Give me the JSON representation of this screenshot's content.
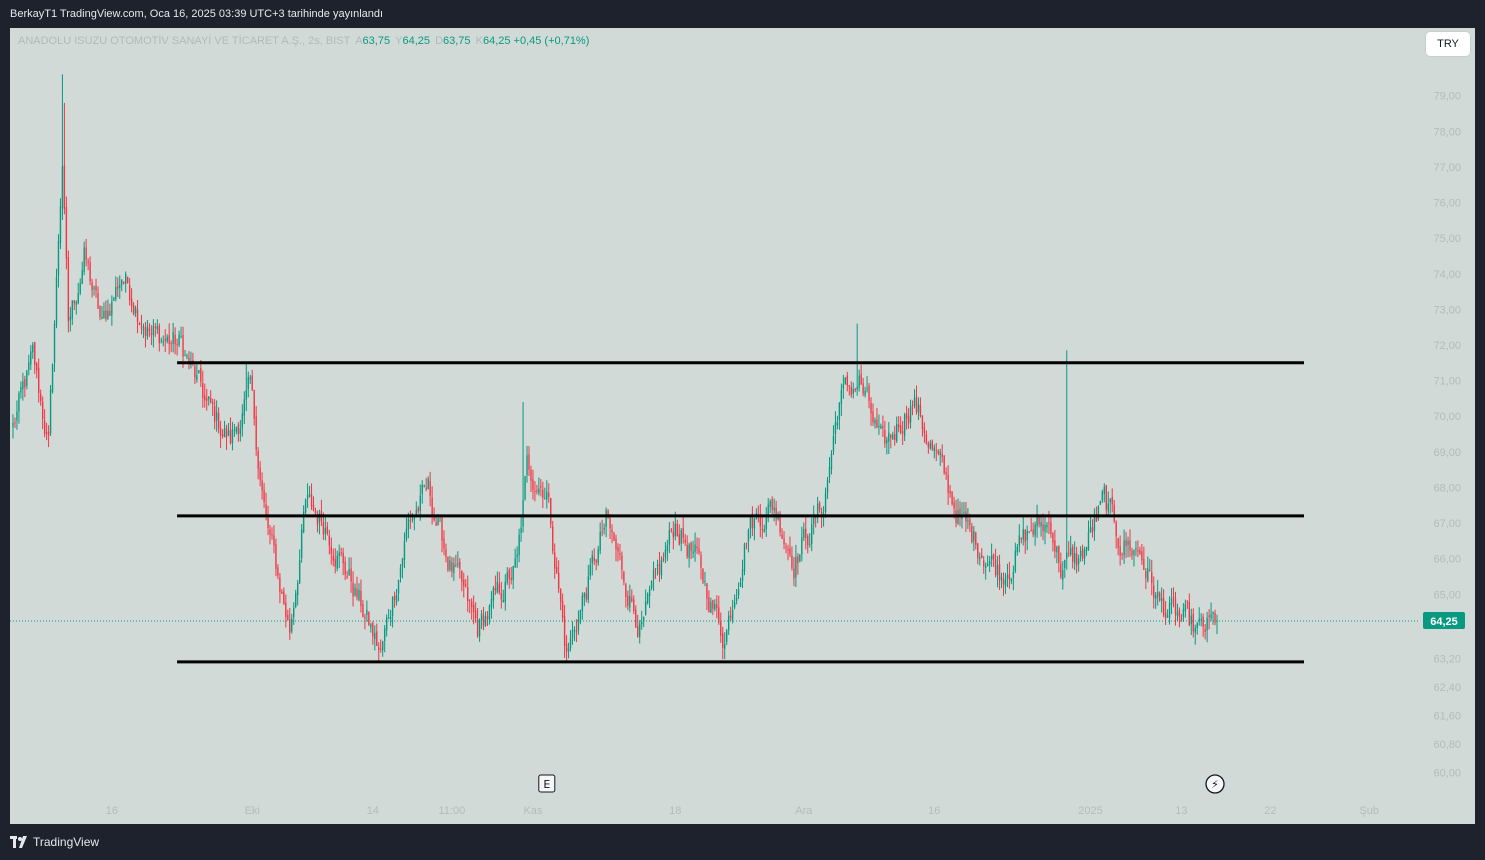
{
  "header": {
    "publish_text": "BerkayT1 TradingView.com, Oca 16, 2025 03:39 UTC+3 tarihinde yayınlandı"
  },
  "legend": {
    "symbol": "ANADOLU ISUZU OTOMOTİV SANAYİ VE TİCARET A.Ş., 2s, BIST",
    "open_key": "A",
    "open": "63,75",
    "high_key": "Y",
    "high": "64,25",
    "low_key": "D",
    "low": "63,75",
    "close_key": "K",
    "close": "64,25",
    "change": "+0,45 (+0,71%)"
  },
  "currency_button": "TRY",
  "brand": {
    "name": "TradingView",
    "logo_icon": "tradingview-logo-icon"
  },
  "colors": {
    "up": "#089981",
    "down": "#f23645",
    "price_tag": "#089981",
    "chart_bg": "#d1dad7",
    "frame_bg": "#1e222d",
    "level_line": "#000000"
  },
  "chart_data": {
    "type": "candlestick",
    "interval": "2s",
    "currency": "TRY",
    "ylim": [
      59.7,
      80.2
    ],
    "y_ticks": [
      {
        "v": 79.0,
        "label": "79,00"
      },
      {
        "v": 78.0,
        "label": "78,00"
      },
      {
        "v": 77.0,
        "label": "77,00"
      },
      {
        "v": 76.0,
        "label": "76,00"
      },
      {
        "v": 75.0,
        "label": "75,00"
      },
      {
        "v": 74.0,
        "label": "74,00"
      },
      {
        "v": 73.0,
        "label": "73,00"
      },
      {
        "v": 72.0,
        "label": "72,00"
      },
      {
        "v": 71.0,
        "label": "71,00"
      },
      {
        "v": 70.0,
        "label": "70,00"
      },
      {
        "v": 69.0,
        "label": "69,00"
      },
      {
        "v": 68.0,
        "label": "68,00"
      },
      {
        "v": 67.0,
        "label": "67,00"
      },
      {
        "v": 66.0,
        "label": "66,00"
      },
      {
        "v": 65.0,
        "label": "65,00"
      },
      {
        "v": 63.2,
        "label": "63,20"
      },
      {
        "v": 62.4,
        "label": "62,40"
      },
      {
        "v": 61.6,
        "label": "61,60"
      },
      {
        "v": 60.8,
        "label": "60,80"
      },
      {
        "v": 60.0,
        "label": "60,00"
      }
    ],
    "x_ticks": [
      {
        "i": 50,
        "label": "16"
      },
      {
        "i": 121,
        "label": "Eki"
      },
      {
        "i": 182,
        "label": "14"
      },
      {
        "i": 222,
        "label": "11:00"
      },
      {
        "i": 263,
        "label": "Kas"
      },
      {
        "i": 335,
        "label": "18"
      },
      {
        "i": 400,
        "label": "Ara"
      },
      {
        "i": 466,
        "label": "16"
      },
      {
        "i": 545,
        "label": "2025"
      },
      {
        "i": 591,
        "label": "13"
      },
      {
        "i": 636,
        "label": "22"
      },
      {
        "i": 686,
        "label": "Şub"
      }
    ],
    "last_price": {
      "v": 64.25,
      "label": "64,25"
    },
    "levels": [
      {
        "name": "resistance",
        "value": 71.5,
        "i_start": 83,
        "i_end": 653
      },
      {
        "name": "mid-range",
        "value": 67.2,
        "i_start": 83,
        "i_end": 653
      },
      {
        "name": "support",
        "value": 63.1,
        "i_start": 83,
        "i_end": 653
      }
    ],
    "markers": [
      {
        "label": "E",
        "i": 270
      },
      {
        "label": "⚡",
        "i": 608
      }
    ],
    "n_bars": 610,
    "last_index": 609,
    "x_max_index": 730,
    "anchors": [
      [
        0,
        69.7
      ],
      [
        10,
        71.6
      ],
      [
        18,
        69.2
      ],
      [
        25,
        77.2
      ],
      [
        28,
        72.5
      ],
      [
        36,
        74.5
      ],
      [
        45,
        72.5
      ],
      [
        55,
        74.0
      ],
      [
        70,
        72.3
      ],
      [
        85,
        72.0
      ],
      [
        98,
        70.3
      ],
      [
        110,
        69.3
      ],
      [
        120,
        70.7
      ],
      [
        128,
        67.0
      ],
      [
        140,
        64.0
      ],
      [
        148,
        67.5
      ],
      [
        158,
        67.0
      ],
      [
        170,
        65.5
      ],
      [
        186,
        63.3
      ],
      [
        200,
        67.0
      ],
      [
        210,
        67.9
      ],
      [
        220,
        66.0
      ],
      [
        235,
        64.0
      ],
      [
        255,
        65.8
      ],
      [
        260,
        68.5
      ],
      [
        270,
        68.0
      ],
      [
        280,
        63.3
      ],
      [
        300,
        67.0
      ],
      [
        318,
        64.0
      ],
      [
        335,
        67.0
      ],
      [
        345,
        66.0
      ],
      [
        360,
        63.8
      ],
      [
        372,
        67.0
      ],
      [
        385,
        67.5
      ],
      [
        395,
        66.0
      ],
      [
        410,
        67.5
      ],
      [
        418,
        70.5
      ],
      [
        428,
        71.0
      ],
      [
        440,
        69.0
      ],
      [
        455,
        70.5
      ],
      [
        480,
        67.0
      ],
      [
        500,
        65.6
      ],
      [
        515,
        66.8
      ],
      [
        525,
        67.0
      ],
      [
        530,
        65.8
      ],
      [
        540,
        66.0
      ],
      [
        552,
        67.6
      ],
      [
        560,
        66.5
      ],
      [
        570,
        66.2
      ],
      [
        580,
        64.7
      ],
      [
        600,
        63.9
      ],
      [
        609,
        64.25
      ]
    ],
    "spikes": [
      {
        "i": 25,
        "high": 79.6
      },
      {
        "i": 26,
        "high": 78.8
      },
      {
        "i": 118,
        "high": 71.5
      },
      {
        "i": 258,
        "high": 70.4
      },
      {
        "i": 427,
        "high": 72.6
      },
      {
        "i": 533,
        "high": 71.85
      }
    ]
  }
}
